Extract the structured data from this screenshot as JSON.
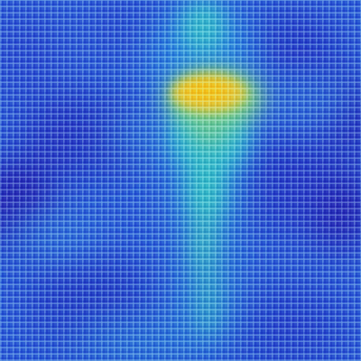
{
  "image": {
    "subject": "woven-fabric-heatmap",
    "colormap": [
      "#2a1fa8",
      "#2f55d8",
      "#2a8fe0",
      "#33c8c8",
      "#8fe07a",
      "#f0d020"
    ],
    "background_color": "#2f5fd6",
    "hotspot_color": "#f2c51c",
    "accent_teal": "#3fd0c8"
  }
}
